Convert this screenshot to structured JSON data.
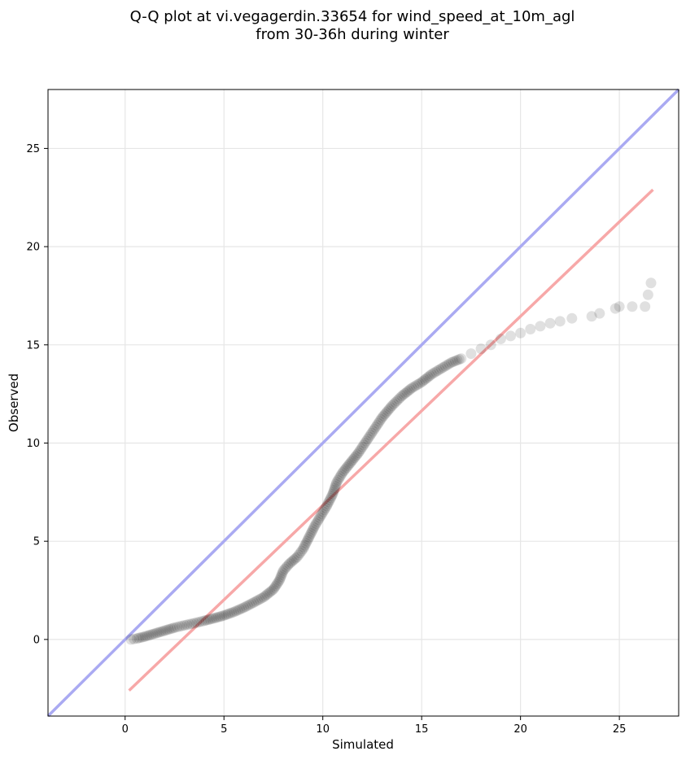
{
  "chart_data": {
    "type": "scatter",
    "title_lines": [
      "Q-Q plot at vi.vegagerdin.33654 for wind_speed_at_10m_agl",
      "from 30-36h during winter"
    ],
    "xlabel": "Simulated",
    "ylabel": "Observed",
    "xlim": [
      -3.9,
      28
    ],
    "ylim": [
      -3.9,
      28
    ],
    "xticks": [
      0,
      5,
      10,
      15,
      20,
      25
    ],
    "yticks": [
      0,
      5,
      10,
      15,
      20,
      25
    ],
    "grid": true,
    "identity_line": {
      "color": "#aaaaf2",
      "from": [
        -3.9,
        -3.9
      ],
      "to": [
        28,
        28
      ]
    },
    "fit_line": {
      "color": "#f7a8a8",
      "from": [
        0.2,
        -2.6
      ],
      "to": [
        26.7,
        22.9
      ]
    },
    "marker_color": "#000000",
    "points": [
      [
        0.3,
        0.0
      ],
      [
        0.6,
        0.05
      ],
      [
        1.0,
        0.15
      ],
      [
        1.5,
        0.3
      ],
      [
        2.0,
        0.45
      ],
      [
        2.5,
        0.6
      ],
      [
        3.0,
        0.72
      ],
      [
        3.5,
        0.83
      ],
      [
        4.0,
        0.95
      ],
      [
        4.5,
        1.08
      ],
      [
        5.0,
        1.22
      ],
      [
        5.5,
        1.4
      ],
      [
        6.0,
        1.62
      ],
      [
        6.5,
        1.88
      ],
      [
        7.0,
        2.15
      ],
      [
        7.5,
        2.55
      ],
      [
        7.8,
        3.0
      ],
      [
        8.0,
        3.5
      ],
      [
        8.3,
        3.85
      ],
      [
        8.7,
        4.2
      ],
      [
        9.0,
        4.6
      ],
      [
        9.3,
        5.2
      ],
      [
        9.6,
        5.8
      ],
      [
        9.9,
        6.3
      ],
      [
        10.2,
        6.8
      ],
      [
        10.5,
        7.4
      ],
      [
        10.7,
        8.0
      ],
      [
        11.0,
        8.5
      ],
      [
        11.4,
        9.0
      ],
      [
        11.8,
        9.5
      ],
      [
        12.2,
        10.1
      ],
      [
        12.6,
        10.7
      ],
      [
        13.0,
        11.3
      ],
      [
        13.5,
        11.9
      ],
      [
        14.0,
        12.4
      ],
      [
        14.5,
        12.8
      ],
      [
        15.0,
        13.1
      ],
      [
        15.5,
        13.5
      ],
      [
        16.0,
        13.8
      ],
      [
        16.5,
        14.1
      ],
      [
        17.0,
        14.3
      ],
      [
        17.5,
        14.55
      ],
      [
        18.0,
        14.8
      ],
      [
        18.5,
        15.0
      ],
      [
        19.0,
        15.3
      ],
      [
        19.5,
        15.45
      ],
      [
        20.0,
        15.6
      ],
      [
        20.5,
        15.8
      ],
      [
        21.0,
        15.95
      ],
      [
        21.5,
        16.1
      ],
      [
        22.0,
        16.2
      ],
      [
        22.6,
        16.35
      ],
      [
        23.6,
        16.45
      ],
      [
        24.0,
        16.6
      ],
      [
        24.8,
        16.85
      ],
      [
        25.0,
        16.95
      ],
      [
        26.3,
        16.95
      ],
      [
        26.6,
        18.15
      ]
    ]
  }
}
